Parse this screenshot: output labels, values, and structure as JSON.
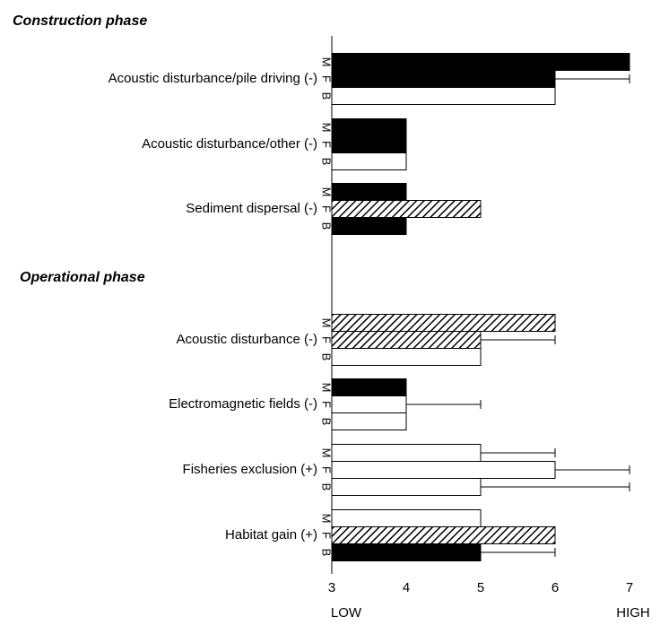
{
  "chart_data": {
    "type": "hbar",
    "annotations": [
      "Construction phase",
      "Operational phase"
    ],
    "categories": [
      "Acoustic disturbance/pile driving (-)",
      "Acoustic disturbance/other (-)",
      "Sediment dispersal (-)",
      "Acoustic disturbance (-)",
      "Electromagnetic fields (-)",
      "Fisheries exclusion (+)",
      "Habitat gain (+)"
    ],
    "series": [
      {
        "name": "M",
        "values": [
          7,
          4,
          4,
          6,
          4,
          5,
          5
        ],
        "errors": [
          null,
          null,
          null,
          null,
          null,
          1,
          null
        ],
        "fills": [
          "black",
          "black",
          "black",
          "hatch",
          "black",
          "white",
          "white"
        ]
      },
      {
        "name": "F",
        "values": [
          6,
          4,
          5,
          5,
          4,
          6,
          6
        ],
        "errors": [
          1,
          null,
          null,
          1,
          1,
          1,
          null
        ],
        "fills": [
          "black",
          "black",
          "hatch",
          "hatch",
          "white",
          "white",
          "hatch"
        ]
      },
      {
        "name": "B",
        "values": [
          6,
          4,
          4,
          5,
          4,
          5,
          5
        ],
        "errors": [
          null,
          null,
          null,
          null,
          null,
          2,
          1
        ],
        "fills": [
          "white",
          "white",
          "black",
          "white",
          "white",
          "white",
          "black"
        ]
      }
    ],
    "xlim": [
      3,
      7
    ],
    "xticks": [
      3,
      4,
      5,
      6,
      7
    ],
    "x_end_labels": [
      "LOW",
      "HIGH"
    ]
  }
}
